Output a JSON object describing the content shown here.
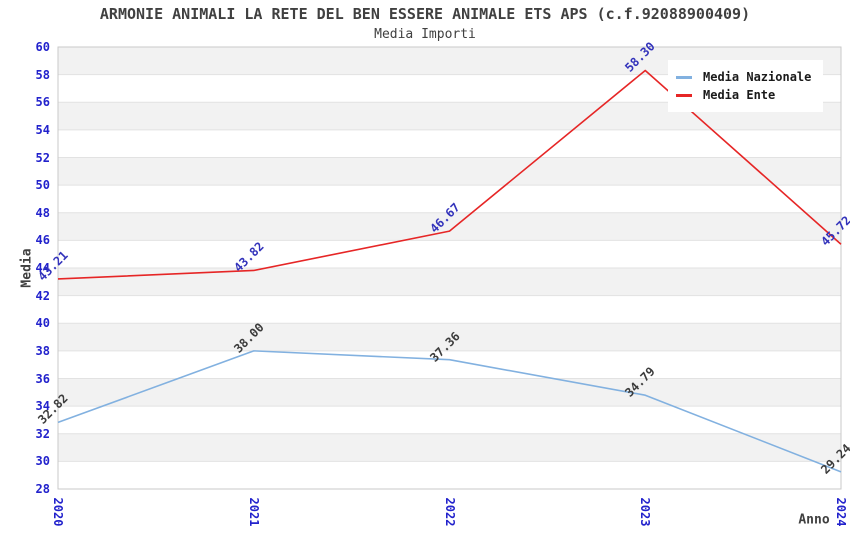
{
  "title": "ARMONIE ANIMALI LA RETE DEL BEN ESSERE ANIMALE ETS APS (c.f.92088900409)",
  "subtitle": "Media Importi",
  "legend": {
    "position": "top-right",
    "items": [
      {
        "label": "Media Nazionale",
        "color": "#82b1e0"
      },
      {
        "label": "Media Ente",
        "color": "#e62626"
      }
    ]
  },
  "chart_data": {
    "type": "line",
    "x": [
      "2020",
      "2021",
      "2022",
      "2023",
      "2024"
    ],
    "series": [
      {
        "name": "Media Nazionale",
        "color": "#82b1e0",
        "label_color": "#3c3c3c",
        "values": [
          32.82,
          38.0,
          37.36,
          34.79,
          29.24
        ]
      },
      {
        "name": "Media Ente",
        "color": "#e62626",
        "label_color": "#3333bb",
        "values": [
          43.21,
          43.82,
          46.67,
          58.3,
          45.72
        ]
      }
    ],
    "xlabel": "Anno",
    "ylabel": "Media",
    "ylim": [
      28,
      60
    ],
    "ytick_step": 2,
    "grid": true,
    "legend_position": "top-right",
    "band_colors": [
      "#f2f2f2",
      "#ffffff"
    ],
    "gridline_color": "#e2e2e2",
    "border_color": "#c9c9c9",
    "tick_color": "#2222cc"
  }
}
